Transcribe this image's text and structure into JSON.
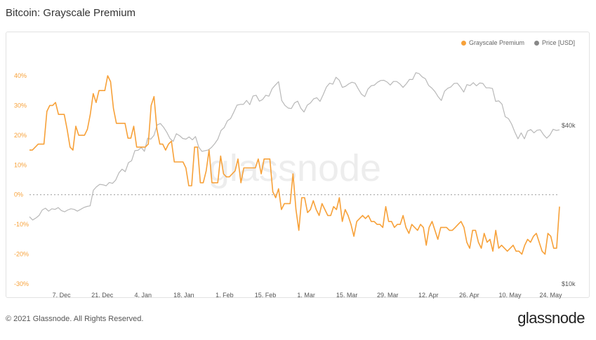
{
  "header": {
    "title": "Bitcoin: Grayscale Premium"
  },
  "footer": {
    "copyright": "© 2021 Glassnode. All Rights Reserved.",
    "brand": "glassnode"
  },
  "watermark": "glassnode",
  "colors": {
    "premium": "#f7a139",
    "price": "#b8b8b8",
    "axis_left": "#f7a139",
    "axis_right": "#555555"
  },
  "legend": [
    {
      "label": "Grayscale Premium",
      "color": "#f7a139"
    },
    {
      "label": "Price [USD]",
      "color": "#888888"
    }
  ],
  "chart_data": {
    "type": "line",
    "x_range": [
      "2020-11-26",
      "2021-05-27"
    ],
    "x_ticks": [
      "7. Dec",
      "21. Dec",
      "4. Jan",
      "18. Jan",
      "1. Feb",
      "15. Feb",
      "1. Mar",
      "15. Mar",
      "29. Mar",
      "12. Apr",
      "26. Apr",
      "10. May",
      "24. May"
    ],
    "y_left": {
      "ticks": [
        "40%",
        "30%",
        "20%",
        "10%",
        "0%",
        "-10%",
        "-20%",
        "-30%"
      ],
      "range": [
        -30,
        42
      ]
    },
    "y_right": {
      "ticks": [
        "$40k",
        "$10k"
      ],
      "scale": "log"
    },
    "zero_line": true,
    "series": [
      {
        "name": "Grayscale Premium",
        "axis": "left",
        "values": [
          15,
          15,
          16,
          17,
          17,
          17,
          28,
          30,
          30,
          31,
          27,
          27,
          27,
          22,
          16,
          15,
          23,
          20,
          20,
          20,
          22,
          27,
          34,
          31,
          35,
          35,
          35,
          40,
          38,
          29,
          24,
          24,
          24,
          24,
          19,
          19,
          23,
          16,
          16,
          16,
          16,
          17,
          30,
          33,
          22,
          17,
          17,
          15,
          17,
          18,
          11,
          11,
          11,
          11,
          9,
          3,
          3,
          16,
          16,
          4,
          4,
          8,
          15,
          4,
          4,
          4,
          13,
          7,
          6,
          6,
          7,
          8,
          12,
          4,
          9,
          9,
          9,
          9,
          9,
          12,
          7,
          12,
          12,
          12,
          1,
          -1,
          2,
          -5,
          -3,
          -3,
          -3,
          7,
          -5,
          -12,
          -1,
          -1,
          -6,
          -5,
          -2,
          -5,
          -7,
          -3,
          -5,
          -7,
          -7,
          -4,
          -5,
          -1,
          -9,
          -5,
          -7,
          -10,
          -14,
          -9,
          -8,
          -7,
          -8,
          -7,
          -9,
          -9,
          -10,
          -10,
          -11,
          -4,
          -9,
          -9,
          -11,
          -10,
          -10,
          -7,
          -11,
          -13,
          -10,
          -11,
          -12,
          -10,
          -11,
          -17,
          -11,
          -9,
          -12,
          -15,
          -11,
          -11,
          -11,
          -12,
          -12,
          -11,
          -10,
          -9,
          -11,
          -16,
          -18,
          -12,
          -12,
          -16,
          -18,
          -13,
          -16,
          -15,
          -19,
          -12,
          -18,
          -17,
          -18,
          -19,
          -18,
          -17,
          -19,
          -19,
          -20,
          -17,
          -15,
          -16,
          -14,
          -13,
          -16,
          -19,
          -20,
          -13,
          -14,
          -18,
          -18,
          -4
        ]
      },
      {
        "name": "Price [USD]",
        "axis": "right",
        "values": [
          18000,
          17500,
          17800,
          18200,
          19100,
          19400,
          18900,
          19300,
          19200,
          19500,
          19000,
          18800,
          19100,
          19300,
          19200,
          18900,
          19200,
          19500,
          19700,
          19800,
          22700,
          23400,
          23900,
          23800,
          23600,
          24300,
          24100,
          24800,
          26400,
          27300,
          26700,
          28900,
          29400,
          32100,
          32200,
          33000,
          31900,
          35800,
          35500,
          36700,
          40200,
          40700,
          39400,
          37700,
          35700,
          34800,
          37200,
          36600,
          35700,
          35500,
          36200,
          35300,
          36300,
          33100,
          31900,
          32100,
          32300,
          33000,
          34100,
          35500,
          38300,
          39300,
          41700,
          42500,
          45000,
          47800,
          48100,
          48100,
          49800,
          48000,
          51800,
          52100,
          49500,
          50200,
          52100,
          51700,
          55200,
          57000,
          58700,
          49800,
          47700,
          46600,
          46400,
          48700,
          49500,
          46500,
          45000,
          47800,
          48700,
          50500,
          51000,
          49400,
          52400,
          56000,
          57900,
          57400,
          61000,
          59500,
          55800,
          56400,
          57600,
          58400,
          57900,
          55000,
          52600,
          51500,
          55000,
          56600,
          56900,
          58400,
          59300,
          59400,
          58500,
          57000,
          58800,
          58800,
          57600,
          55800,
          57600,
          59800,
          59800,
          63500,
          63000,
          61200,
          60200,
          56800,
          55500,
          53800,
          51400,
          49800,
          54000,
          55400,
          56100,
          57800,
          57900,
          55900,
          53600,
          57200,
          56700,
          58200,
          56600,
          58000,
          57800,
          55600,
          55600,
          55300,
          49400,
          49600,
          48200,
          43200,
          42500,
          40500,
          37800,
          35600,
          37500,
          35600,
          38100,
          38600,
          37500,
          38400,
          38500,
          36900,
          35800,
          36800,
          38700,
          38300,
          38500
        ]
      }
    ]
  }
}
